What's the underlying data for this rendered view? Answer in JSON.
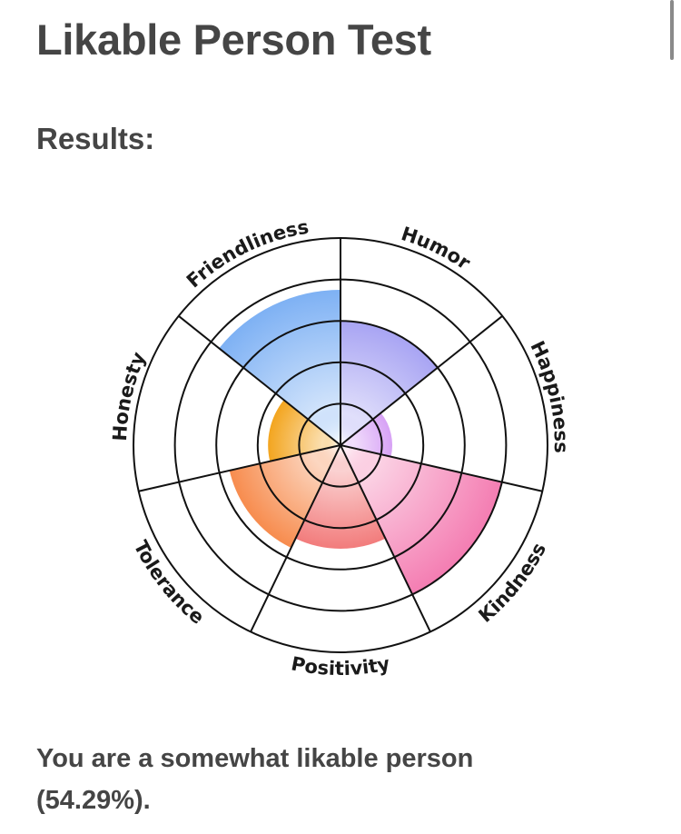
{
  "header": {
    "title": "Likable Person Test"
  },
  "section_label": "Results:",
  "summary": {
    "line1": "You are a somewhat likable person",
    "line2": "(54.29%)."
  },
  "chart_data": {
    "type": "polar-area",
    "title": "",
    "scale_max": 10,
    "rings": 5,
    "grid": true,
    "categories": [
      "Humor",
      "Happiness",
      "Kindness",
      "Positivity",
      "Tolerance",
      "Honesty",
      "Friendliness"
    ],
    "values": [
      6,
      2.5,
      8,
      5,
      5.5,
      3.5,
      7.5
    ],
    "colors": [
      "#a8a4f3",
      "#d7a2f5",
      "#f47db2",
      "#f27c7c",
      "#f78c4e",
      "#f3a51f",
      "#7eb1f4"
    ]
  }
}
